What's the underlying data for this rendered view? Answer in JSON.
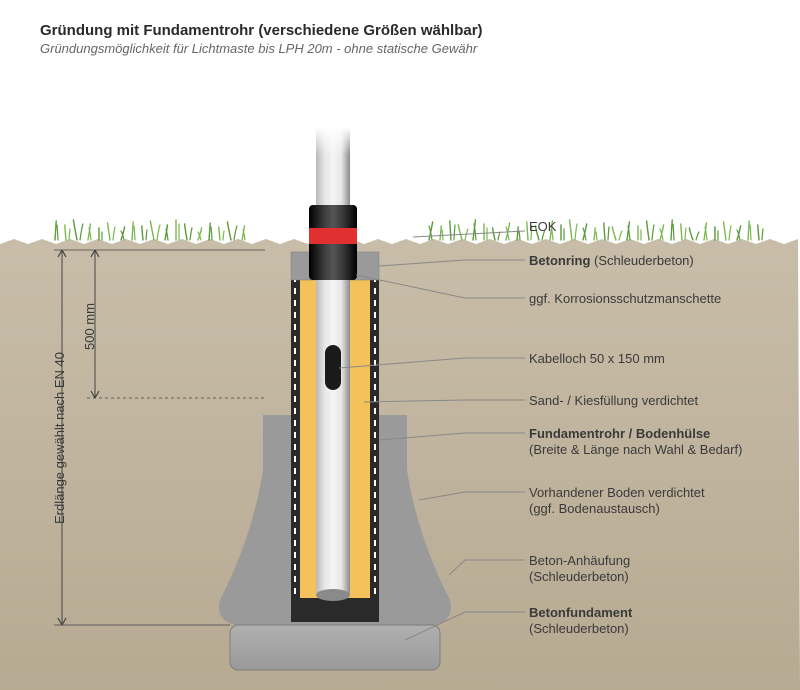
{
  "header": {
    "title": "Gründung mit Fundamentrohr (verschiedene Größen wählbar)",
    "subtitle": "Gründungsmöglichkeit für Lichtmaste bis LPH 20m - ohne statische Gewähr"
  },
  "dimensions": {
    "depth500": "500 mm",
    "earthLength": "Erdlänge gewählt nach EN 40",
    "eok": "EOK"
  },
  "callouts": {
    "betonring": {
      "bold": "Betonring",
      "paren": " (Schleuderbeton)"
    },
    "korrosion": {
      "text": "ggf. Korrosionsschutzmanschette"
    },
    "kabelloch": {
      "text": "Kabelloch 50 x 150 mm"
    },
    "sandkies": {
      "text": "Sand- / Kiesfüllung verdichtet"
    },
    "fundamentrohr": {
      "bold": "Fundamentrohr / Bodenhülse",
      "paren": "(Breite & Länge nach Wahl & Bedarf)"
    },
    "boden": {
      "line1": "Vorhandener Boden verdichtet",
      "line2": "(ggf. Bodenaustausch)"
    },
    "anhaeufung": {
      "line1": "Beton-Anhäufung",
      "line2": "(Schleuderbeton)"
    },
    "betonfundament": {
      "bold": "Betonfundament",
      "paren": "(Schleuderbeton)"
    }
  },
  "colors": {
    "soil": "#b7aa93",
    "soilLight": "#c8bda8",
    "concrete": "#9a9a9a",
    "concreteDark": "#7d7d7d",
    "sand": "#f4c15b",
    "pipeLight": "#e6e6e6",
    "pipeMid": "#b8b8b8",
    "pipeDark": "#8a8a8a",
    "sleeveBlack": "#1a1a1a",
    "sleeveRed": "#e03030",
    "grass1": "#7ab850",
    "grass2": "#5a9a3a",
    "dimLine": "#444444",
    "leader": "#888888",
    "dashStroke": "#2a2a2a",
    "bg": "#ffffff"
  },
  "layout": {
    "groundY": 237,
    "soilBottom": 690,
    "excavLeft": 265,
    "excavRight": 405,
    "concreteTop": 252,
    "tubeOuterLeft": 291,
    "tubeOuterRight": 379,
    "tubeInnerLeft": 300,
    "tubeInnerRight": 370,
    "tubeBottom": 608,
    "pipeLeft": 316,
    "pipeRight": 350,
    "pipeTop": 90,
    "pipeBottom": 595,
    "sleeveTop": 205,
    "sleeveBottom": 280,
    "redTop": 228,
    "redBottom": 244,
    "concRingTop": 252,
    "concRingBottom": 280,
    "cableHoleTop": 345,
    "cableHoleBottom": 390,
    "baseTopY": 625,
    "baseWidth": 210,
    "baseHeight": 45,
    "dim500Top": 250,
    "dim500Bottom": 398,
    "dimFullTop": 250,
    "dimFullBottom": 625,
    "dimX1": 95,
    "dimX2": 62,
    "leaderX": 525,
    "calloutYs": {
      "eok": 225,
      "betonring": 260,
      "korrosion": 298,
      "kabelloch": 358,
      "sandkies": 400,
      "fundamentrohr": 433,
      "boden": 492,
      "anhaeufung": 560,
      "betonfundament": 612
    }
  }
}
